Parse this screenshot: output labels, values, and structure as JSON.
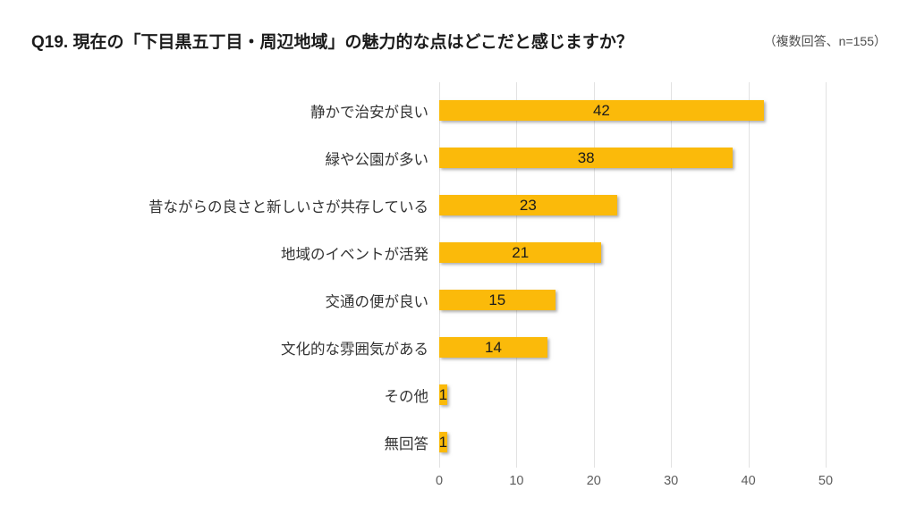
{
  "header": {
    "title": "Q19. 現在の「下目黒五丁目・周辺地域」の魅力的な点はどこだと感じますか？",
    "note": "（複数回答、n=155）"
  },
  "chart_data": {
    "type": "bar",
    "orientation": "horizontal",
    "title": "Q19. 現在の「下目黒五丁目・周辺地域」の魅力的な点はどこだと感じますか？",
    "subtitle": "（複数回答、n=155）",
    "sample_note": "複数回答",
    "n": 155,
    "categories": [
      "静かで治安が良い",
      "緑や公園が多い",
      "昔ながらの良さと新しいさが共存している",
      "地域のイベントが活発",
      "交通の便が良い",
      "文化的な雰囲気がある",
      "その他",
      "無回答"
    ],
    "values": [
      42,
      38,
      23,
      21,
      15,
      14,
      1,
      1
    ],
    "xlabel": "",
    "ylabel": "",
    "xlim": [
      0,
      50
    ],
    "xticks": [
      0,
      10,
      20,
      30,
      40,
      50
    ],
    "grid": true,
    "legend": false,
    "bar_color": "#FBBA0A",
    "value_label_color": "#1b1b1b",
    "gridline_color": "#e2e2e2"
  }
}
